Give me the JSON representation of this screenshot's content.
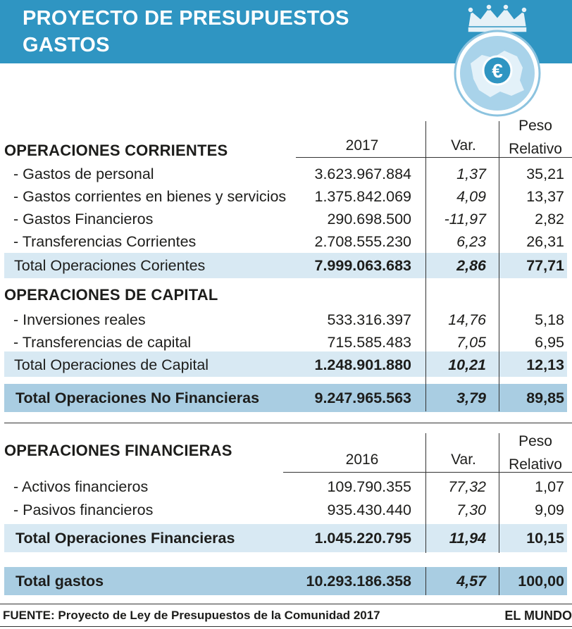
{
  "header": {
    "title_line1": "PROYECTO DE PRESUPUESTOS",
    "title_line2": "GASTOS"
  },
  "logo": {
    "symbol": "€",
    "icon": "coat-of-arms-euro-icon"
  },
  "chart_data": {
    "type": "table",
    "title": "PROYECTO DE PRESUPUESTOS GASTOS",
    "columns_1": {
      "year": "2017",
      "var": "Var.",
      "peso_1": "Peso",
      "peso_2": "Relativo"
    },
    "columns_2": {
      "year": "2016",
      "var": "Var.",
      "peso_1": "Peso",
      "peso_2": "Relativo"
    },
    "sections": {
      "corrientes": {
        "title": "OPERACIONES CORRIENTES",
        "rows": [
          {
            "label": "- Gastos de personal",
            "amount": "3.623.967.884",
            "var": "1,37",
            "peso": "35,21"
          },
          {
            "label": "- Gastos corrientes en bienes y servicios",
            "amount": "1.375.842.069",
            "var": "4,09",
            "peso": "13,37"
          },
          {
            "label": "- Gastos Financieros",
            "amount": "290.698.500",
            "var": "-11,97",
            "peso": "2,82"
          },
          {
            "label": "- Transferencias Corrientes",
            "amount": "2.708.555.230",
            "var": "6,23",
            "peso": "26,31"
          }
        ],
        "total": {
          "label": "Total Operaciones Corientes",
          "amount": "7.999.063.683",
          "var": "2,86",
          "peso": "77,71"
        }
      },
      "capital": {
        "title": "OPERACIONES DE CAPITAL",
        "rows": [
          {
            "label": "- Inversiones reales",
            "amount": "533.316.397",
            "var": "14,76",
            "peso": "5,18"
          },
          {
            "label": "- Transferencias de capital",
            "amount": "715.585.483",
            "var": "7,05",
            "peso": "6,95"
          }
        ],
        "total": {
          "label": "Total Operaciones de Capital",
          "amount": "1.248.901.880",
          "var": "10,21",
          "peso": "12,13"
        }
      },
      "no_financieras": {
        "label": "Total Operaciones No Financieras",
        "amount": "9.247.965.563",
        "var": "3,79",
        "peso": "89,85"
      },
      "financieras": {
        "title": "OPERACIONES FINANCIERAS",
        "rows": [
          {
            "label": "- Activos financieros",
            "amount": "109.790.355",
            "var": "77,32",
            "peso": "1,07"
          },
          {
            "label": "- Pasivos financieros",
            "amount": "935.430.440",
            "var": "7,30",
            "peso": "9,09"
          }
        ],
        "total": {
          "label": "Total Operaciones Financieras",
          "amount": "1.045.220.795",
          "var": "11,94",
          "peso": "10,15"
        }
      },
      "total_gastos": {
        "label": "Total gastos",
        "amount": "10.293.186.358",
        "var": "4,57",
        "peso": "100,00"
      }
    }
  },
  "footer": {
    "source": "FUENTE:  Proyecto de Ley de Presupuestos de la Comunidad 2017",
    "brand": "EL MUNDO"
  },
  "colors": {
    "header": "#2f95c2",
    "band_light": "#d8e9f3",
    "band_dark": "#a9cde2"
  }
}
